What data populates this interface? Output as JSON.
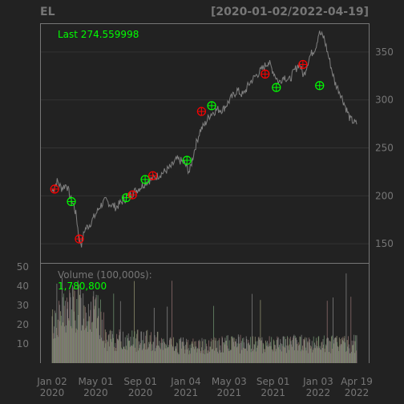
{
  "header": {
    "symbol": "EL",
    "range": "[2020-01-02/2022-04-19]"
  },
  "price_panel": {
    "last_label": "Last 274.559998"
  },
  "volume_panel": {
    "label": "Volume (100,000s):",
    "last_value": "1,780,800"
  },
  "colors": {
    "background": "#222222",
    "axis": "#767676",
    "grid": "#333333",
    "line": "#808080",
    "up_marker": "#00ff00",
    "down_marker": "#ff0000",
    "label_green": "#00ff00"
  },
  "chart_data": [
    {
      "type": "line",
      "panel": "price",
      "x_axis_type": "date",
      "xlim": [
        "2020-01-02",
        "2022-04-19"
      ],
      "ylim": [
        130,
        380
      ],
      "yticks": [
        150,
        200,
        250,
        300,
        350
      ],
      "grid": true,
      "series": [
        {
          "x": [
            "2020-01-02",
            "2020-01-16",
            "2020-01-28",
            "2020-02-11",
            "2020-02-21",
            "2020-03-02",
            "2020-03-09",
            "2020-03-16",
            "2020-03-23",
            "2020-04-01",
            "2020-04-14",
            "2020-04-30",
            "2020-05-14",
            "2020-05-29",
            "2020-06-08",
            "2020-06-26",
            "2020-07-15",
            "2020-07-31",
            "2020-08-18",
            "2020-09-04",
            "2020-09-18",
            "2020-10-06",
            "2020-10-23",
            "2020-11-06",
            "2020-11-24",
            "2020-12-10",
            "2020-12-29",
            "2021-01-14",
            "2021-01-29",
            "2021-02-12",
            "2021-02-26",
            "2021-03-12",
            "2021-03-31",
            "2021-04-16",
            "2021-05-05",
            "2021-05-25",
            "2021-06-10",
            "2021-06-29",
            "2021-07-15",
            "2021-08-02",
            "2021-08-19",
            "2021-09-01",
            "2021-09-17",
            "2021-10-01",
            "2021-10-15",
            "2021-10-29",
            "2021-11-12",
            "2021-11-24",
            "2021-12-10",
            "2021-12-27",
            "2022-01-05",
            "2022-01-19",
            "2022-02-04",
            "2022-02-18",
            "2022-03-04",
            "2022-03-17",
            "2022-04-01",
            "2022-04-19"
          ],
          "y": [
            205,
            215,
            208,
            212,
            198,
            190,
            178,
            155,
            150,
            165,
            170,
            180,
            190,
            195,
            192,
            188,
            195,
            200,
            205,
            210,
            215,
            218,
            222,
            225,
            230,
            238,
            235,
            225,
            250,
            268,
            275,
            285,
            290,
            290,
            300,
            310,
            305,
            318,
            325,
            332,
            340,
            330,
            318,
            325,
            320,
            330,
            338,
            325,
            345,
            355,
            370,
            365,
            340,
            318,
            308,
            295,
            280,
            274.56
          ]
        }
      ],
      "markers": [
        {
          "date": "2020-01-09",
          "value": 207,
          "type": "down"
        },
        {
          "date": "2020-02-24",
          "value": 194,
          "type": "up"
        },
        {
          "date": "2020-03-17",
          "value": 155,
          "type": "down"
        },
        {
          "date": "2020-07-24",
          "value": 198,
          "type": "up"
        },
        {
          "date": "2020-08-10",
          "value": 201,
          "type": "down"
        },
        {
          "date": "2020-09-14",
          "value": 217,
          "type": "up"
        },
        {
          "date": "2020-10-05",
          "value": 221,
          "type": "down"
        },
        {
          "date": "2021-01-07",
          "value": 237,
          "type": "up"
        },
        {
          "date": "2021-02-16",
          "value": 288,
          "type": "down"
        },
        {
          "date": "2021-03-16",
          "value": 294,
          "type": "up"
        },
        {
          "date": "2021-08-10",
          "value": 327,
          "type": "down"
        },
        {
          "date": "2021-09-10",
          "value": 313,
          "type": "up"
        },
        {
          "date": "2021-11-22",
          "value": 337,
          "type": "down"
        },
        {
          "date": "2022-01-07",
          "value": 315,
          "type": "up"
        }
      ]
    },
    {
      "type": "bar",
      "panel": "volume",
      "ylabel": "Volume (100,000s)",
      "ylim": [
        0,
        52
      ],
      "yticks": [
        10,
        20,
        30,
        40,
        50
      ],
      "xtick_labels": [
        {
          "date": "2020-01-02",
          "line1": "Jan 02",
          "line2": "2020"
        },
        {
          "date": "2020-05-01",
          "line1": "May 01",
          "line2": "2020"
        },
        {
          "date": "2020-09-01",
          "line1": "Sep 01",
          "line2": "2020"
        },
        {
          "date": "2021-01-04",
          "line1": "Jan 04",
          "line2": "2021"
        },
        {
          "date": "2021-05-03",
          "line1": "May 03",
          "line2": "2021"
        },
        {
          "date": "2021-09-01",
          "line1": "Sep 01",
          "line2": "2021"
        },
        {
          "date": "2022-01-03",
          "line1": "Jan 03",
          "line2": "2022"
        },
        {
          "date": "2022-04-19",
          "line1": "Apr 19",
          "line2": "2022"
        }
      ],
      "last_value": 17.808
    }
  ]
}
